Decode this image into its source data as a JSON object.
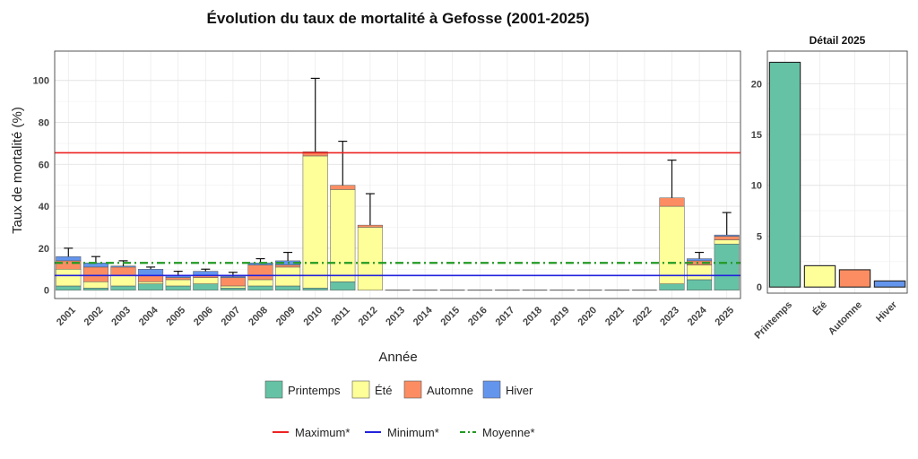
{
  "chart_data": [
    {
      "type": "bar",
      "stacked": true,
      "title": "Évolution du taux de mortalité à Gefosse (2001-2025)",
      "xlabel": "Année",
      "ylabel": "Taux de mortalité (%)",
      "ylim": [
        -4,
        114
      ],
      "yticks": [
        0,
        20,
        40,
        60,
        80,
        100
      ],
      "grid": true,
      "categories": [
        "2001",
        "2002",
        "2003",
        "2004",
        "2005",
        "2006",
        "2007",
        "2008",
        "2009",
        "2010",
        "2011",
        "2012",
        "2013",
        "2014",
        "2015",
        "2016",
        "2017",
        "2018",
        "2019",
        "2020",
        "2021",
        "2022",
        "2023",
        "2024",
        "2025"
      ],
      "series": [
        {
          "name": "Printemps",
          "color": "#66c2a5",
          "values": [
            2,
            1,
            2,
            3,
            2,
            3,
            1,
            2,
            2,
            1,
            4,
            0,
            0,
            0,
            0,
            0,
            0,
            0,
            0,
            0,
            0,
            0,
            3,
            5,
            22
          ]
        },
        {
          "name": "Été",
          "color": "#ffff99",
          "values": [
            8,
            3,
            5,
            1,
            3,
            3,
            1,
            3,
            9,
            63,
            44,
            30,
            0,
            0,
            0,
            0,
            0,
            0,
            0,
            0,
            0,
            0,
            37,
            7,
            2
          ]
        },
        {
          "name": "Automne",
          "color": "#fc8d62",
          "values": [
            4,
            7,
            4,
            3,
            1,
            1,
            4,
            7,
            1,
            2,
            2,
            1,
            0,
            0,
            0,
            0,
            0,
            0,
            0,
            0,
            0,
            0,
            4,
            2,
            1.7
          ]
        },
        {
          "name": "Hiver",
          "color": "#6495ed",
          "values": [
            2,
            2,
            0.5,
            3,
            1,
            2,
            0.5,
            1,
            2,
            0,
            0,
            0,
            0,
            0,
            0,
            0,
            0,
            0,
            0,
            0,
            0,
            0,
            0,
            1,
            0.6
          ]
        }
      ],
      "error_bar_upper": [
        20,
        16,
        14,
        11,
        9,
        10,
        8.5,
        15,
        18,
        101,
        71,
        46,
        0,
        0,
        0,
        0,
        0,
        0,
        0,
        0,
        0,
        0,
        62,
        18,
        37
      ],
      "reference_lines": [
        {
          "name": "Maximum*",
          "value": 65.5,
          "color": "#ee2222",
          "style": "solid"
        },
        {
          "name": "Minimum*",
          "value": 7,
          "color": "#2222dd",
          "style": "solid"
        },
        {
          "name": "Moyenne*",
          "value": 13,
          "color": "#229922",
          "style": "dashdot"
        }
      ],
      "legend_placement": "bottom"
    },
    {
      "type": "bar",
      "title": "Détail 2025",
      "categories": [
        "Printemps",
        "Été",
        "Automne",
        "Hiver"
      ],
      "values": [
        22.1,
        2.1,
        1.7,
        0.6
      ],
      "colors": [
        "#66c2a5",
        "#ffff99",
        "#fc8d62",
        "#6495ed"
      ],
      "ylim": [
        -0.6,
        23.2
      ],
      "yticks": [
        0,
        5,
        10,
        15,
        20
      ],
      "grid": true
    }
  ]
}
